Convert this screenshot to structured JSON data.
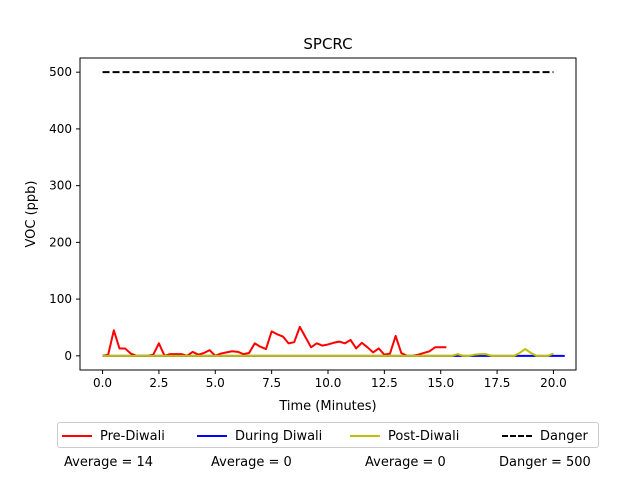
{
  "chart_data": {
    "type": "line",
    "title": "SPCRC",
    "xlabel": "Time (Minutes)",
    "ylabel": "VOC (ppb)",
    "xlim": [
      -1.0,
      21.0
    ],
    "ylim": [
      -25,
      525
    ],
    "xticks": [
      0.0,
      2.5,
      5.0,
      7.5,
      10.0,
      12.5,
      15.0,
      17.5,
      20.0
    ],
    "xtick_labels": [
      "0.0",
      "2.5",
      "5.0",
      "7.5",
      "10.0",
      "12.5",
      "15.0",
      "17.5",
      "20.0"
    ],
    "yticks": [
      0,
      100,
      200,
      300,
      400,
      500
    ],
    "ytick_labels": [
      "0",
      "100",
      "200",
      "300",
      "400",
      "500"
    ],
    "grid": false,
    "series": [
      {
        "name": "Pre-Diwali",
        "color": "#ff0000",
        "dash": "solid",
        "x": [
          0.0,
          0.25,
          0.5,
          0.75,
          1.0,
          1.25,
          1.5,
          1.75,
          2.0,
          2.25,
          2.5,
          2.75,
          3.0,
          3.25,
          3.5,
          3.75,
          4.0,
          4.25,
          4.5,
          4.75,
          5.0,
          5.25,
          5.5,
          5.75,
          6.0,
          6.25,
          6.5,
          6.75,
          7.0,
          7.25,
          7.5,
          7.75,
          8.0,
          8.25,
          8.5,
          8.75,
          9.0,
          9.25,
          9.5,
          9.75,
          10.0,
          10.25,
          10.5,
          10.75,
          11.0,
          11.25,
          11.5,
          11.75,
          12.0,
          12.25,
          12.5,
          12.75,
          13.0,
          13.25,
          13.5,
          13.75,
          14.0,
          14.25,
          14.5,
          14.75,
          15.0,
          15.25
        ],
        "y": [
          0,
          2,
          45,
          13,
          13,
          4,
          0,
          0,
          0,
          2,
          22,
          0,
          3,
          3,
          3,
          0,
          7,
          2,
          5,
          10,
          0,
          4,
          6,
          8,
          7,
          3,
          5,
          22,
          16,
          12,
          43,
          38,
          34,
          22,
          24,
          51,
          33,
          15,
          22,
          18,
          20,
          23,
          25,
          22,
          28,
          13,
          23,
          15,
          6,
          13,
          2,
          4,
          35,
          5,
          0,
          0,
          2,
          5,
          8,
          15,
          15,
          15
        ]
      },
      {
        "name": "During Diwali",
        "color": "#0000ff",
        "dash": "solid",
        "x": [
          0.0,
          20.5
        ],
        "y": [
          0,
          0
        ]
      },
      {
        "name": "Post-Diwali",
        "color": "#bfbf00",
        "dash": "solid",
        "x": [
          0.0,
          15.0,
          15.5,
          15.75,
          16.0,
          16.25,
          16.5,
          16.75,
          17.0,
          17.25,
          17.5,
          17.75,
          18.0,
          18.25,
          18.5,
          18.75,
          19.0,
          19.25,
          19.5,
          19.75,
          20.0
        ],
        "y": [
          0,
          0,
          0,
          3,
          0,
          0,
          2,
          3,
          3,
          0,
          0,
          0,
          0,
          0,
          5,
          12,
          5,
          0,
          0,
          0,
          4
        ]
      },
      {
        "name": "Danger",
        "color": "#000000",
        "dash": "dashed",
        "x": [
          0.0,
          20.0
        ],
        "y": [
          500,
          500
        ]
      }
    ]
  },
  "legend": {
    "items": [
      {
        "label": "Pre-Diwali",
        "color": "#ff0000",
        "dash": "solid"
      },
      {
        "label": "During Diwali",
        "color": "#0000ff",
        "dash": "solid"
      },
      {
        "label": "Post-Diwali",
        "color": "#bfbf00",
        "dash": "solid"
      },
      {
        "label": "Danger",
        "color": "#000000",
        "dash": "dashed"
      }
    ]
  },
  "averages": {
    "pre": "Average = 14",
    "during": "Average = 0",
    "post": "Average = 0",
    "danger": "Danger = 500"
  }
}
